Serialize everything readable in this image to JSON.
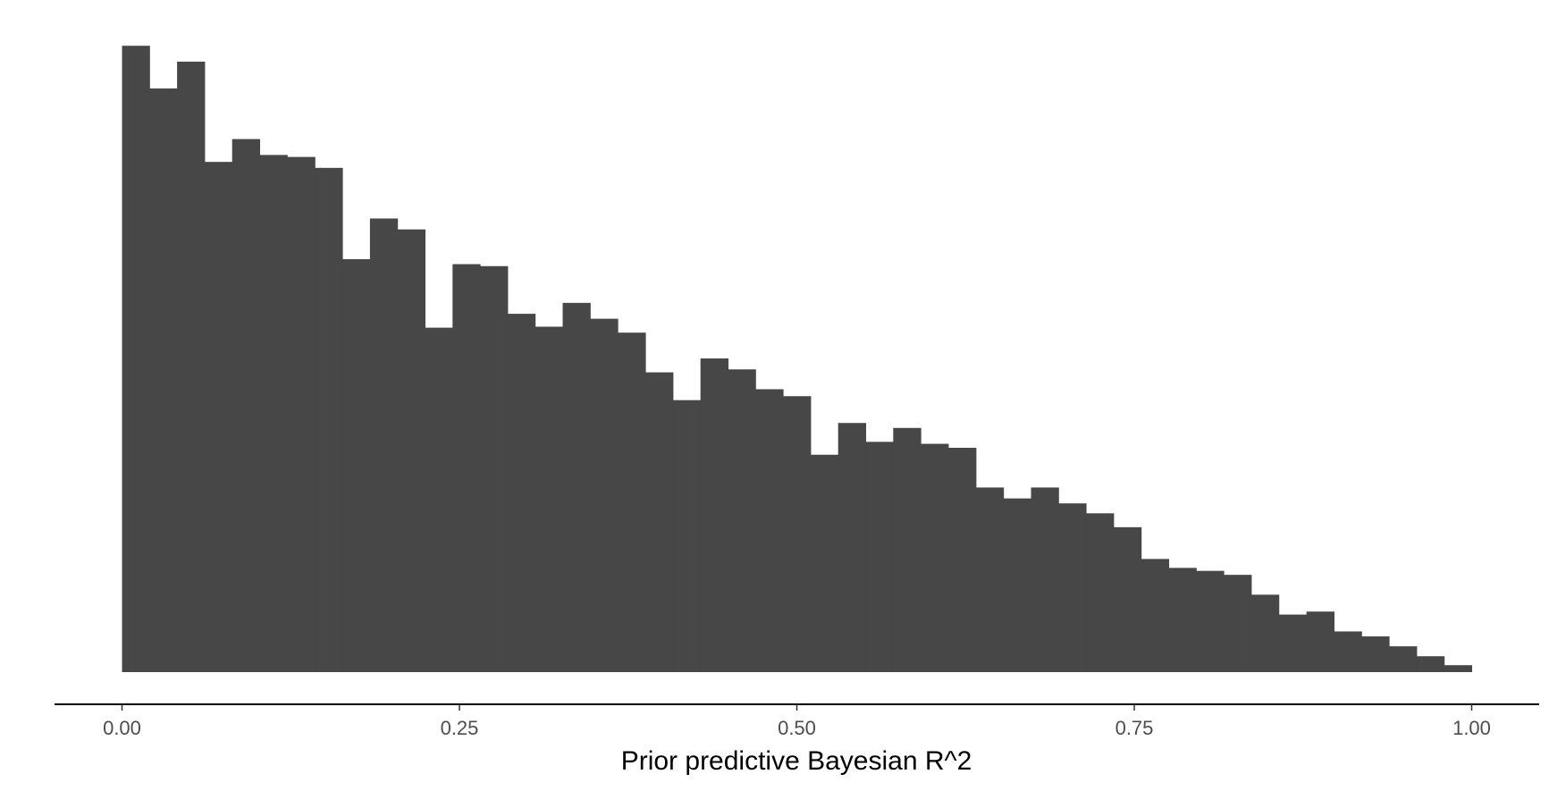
{
  "chart_data": {
    "type": "histogram",
    "x_label": "Prior predictive Bayesian R^2",
    "bins": [
      0,
      0.0204,
      0.0408,
      0.0612,
      0.0816,
      0.102,
      0.1224,
      0.1429,
      0.1633,
      0.1837,
      0.2041,
      0.2245,
      0.2449,
      0.2653,
      0.2857,
      0.3061,
      0.3265,
      0.3469,
      0.3673,
      0.3878,
      0.4082,
      0.4286,
      0.449,
      0.4694,
      0.4898,
      0.5102,
      0.5306,
      0.551,
      0.5714,
      0.5918,
      0.6122,
      0.6327,
      0.6531,
      0.6735,
      0.6939,
      0.7143,
      0.7347,
      0.7551,
      0.7755,
      0.7959,
      0.8163,
      0.8367,
      0.8571,
      0.8776,
      0.898,
      0.9184,
      0.9388,
      0.9592,
      0.9796,
      1
    ],
    "values": [
      631,
      588,
      615,
      514,
      537,
      521,
      519,
      508,
      416,
      457,
      446,
      347,
      411,
      409,
      361,
      348,
      372,
      356,
      342,
      302,
      274,
      316,
      305,
      285,
      278,
      219,
      251,
      232,
      246,
      230,
      226,
      186,
      175,
      186,
      170,
      160,
      146,
      114,
      105,
      102,
      98,
      78,
      58,
      61,
      41,
      36,
      26,
      16,
      7
    ],
    "color": "#474747",
    "xlim": [
      -0.05,
      1.05
    ],
    "ylim": [
      0,
      660
    ],
    "xticks": [
      {
        "value": 0,
        "label": "0.00"
      },
      {
        "value": 0.25,
        "label": "0.25"
      },
      {
        "value": 0.5,
        "label": "0.50"
      },
      {
        "value": 0.75,
        "label": "0.75"
      },
      {
        "value": 1,
        "label": "1.00"
      }
    ]
  }
}
